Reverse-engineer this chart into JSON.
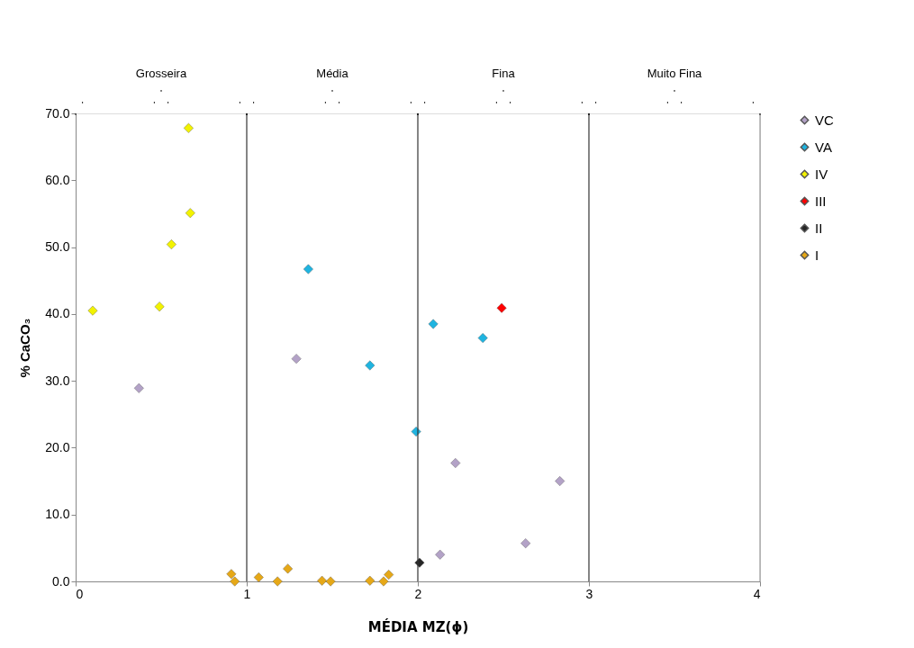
{
  "chart_data": {
    "type": "scatter",
    "xlabel": "MÉDIA MZ(ϕ)",
    "ylabel": "% CaCO₃",
    "xlim": [
      0,
      4
    ],
    "xticks": [
      0,
      1,
      2,
      3,
      4
    ],
    "ylim": [
      0,
      70
    ],
    "yticks": [
      {
        "value": 0,
        "label": "0.0"
      },
      {
        "value": 10,
        "label": "10.0"
      },
      {
        "value": 20,
        "label": "20.0"
      },
      {
        "value": 30,
        "label": "30.0"
      },
      {
        "value": 40,
        "label": "40.0"
      },
      {
        "value": 50,
        "label": "50.0"
      },
      {
        "value": 60,
        "label": "60.0"
      },
      {
        "value": 70,
        "label": "70.0"
      }
    ],
    "grid": false,
    "legend": "right",
    "marker": "diamond",
    "ref_lines": [
      {
        "axis": "x",
        "value": 1,
        "color": "#333333"
      },
      {
        "axis": "x",
        "value": 2,
        "color": "#333333"
      },
      {
        "axis": "x",
        "value": 3,
        "color": "#333333"
      },
      {
        "axis": "x",
        "value": 4,
        "color": "#999999"
      }
    ],
    "annotations": [
      "Grosseira",
      "Média",
      "Fina",
      "Muito Fina"
    ],
    "series": [
      {
        "name": "VC",
        "color": "#b3a2c7",
        "x": [
          0.37,
          1.29,
          2.22,
          2.83,
          2.63,
          2.13
        ],
        "values": [
          28.9,
          33.3,
          17.7,
          15.0,
          5.7,
          4.0
        ]
      },
      {
        "name": "VA",
        "color": "#1fb4e0",
        "x": [
          1.36,
          1.72,
          1.99,
          2.09,
          2.38
        ],
        "values": [
          46.7,
          32.3,
          22.4,
          38.5,
          36.4
        ]
      },
      {
        "name": "IV",
        "color": "#f2f200",
        "x": [
          0.1,
          0.49,
          0.56,
          0.67,
          0.66
        ],
        "values": [
          40.5,
          41.1,
          50.4,
          55.1,
          67.8
        ]
      },
      {
        "name": "III",
        "color": "#ff0000",
        "x": [
          2.49
        ],
        "values": [
          40.9
        ]
      },
      {
        "name": "II",
        "color": "#262626",
        "x": [
          2.01
        ],
        "values": [
          2.8
        ]
      },
      {
        "name": "I",
        "color": "#e6a817",
        "x": [
          0.91,
          0.93,
          1.07,
          1.18,
          1.24,
          1.44,
          1.49,
          1.72,
          1.8,
          1.83
        ],
        "values": [
          1.1,
          0.0,
          0.6,
          0.0,
          1.9,
          0.1,
          0.0,
          0.1,
          0.0,
          1.0
        ]
      }
    ]
  }
}
